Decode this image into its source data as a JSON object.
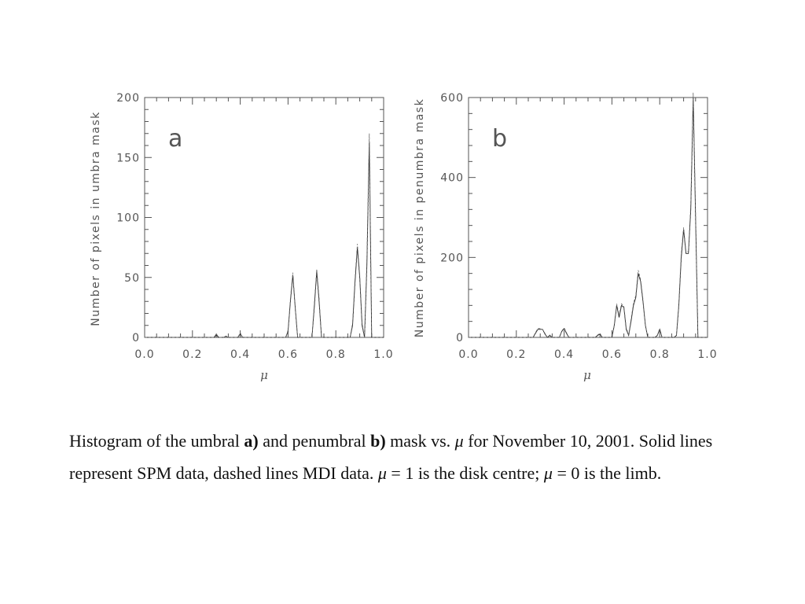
{
  "chart_data": [
    {
      "type": "line",
      "panel_label": "a",
      "ylabel": "Number of pixels in umbra mask",
      "xlabel": "μ",
      "xlim": [
        0,
        1
      ],
      "ylim": [
        0,
        200
      ],
      "xticks": [
        "0.0",
        "0.2",
        "0.4",
        "0.6",
        "0.8",
        "1.0"
      ],
      "yticks": [
        "0",
        "50",
        "100",
        "150",
        "200"
      ],
      "grid": false,
      "series": [
        {
          "style": "solid",
          "x": [
            0.0,
            0.29,
            0.3,
            0.31,
            0.33,
            0.34,
            0.35,
            0.39,
            0.4,
            0.41,
            0.59,
            0.6,
            0.61,
            0.62,
            0.63,
            0.64,
            0.7,
            0.71,
            0.72,
            0.73,
            0.74,
            0.86,
            0.87,
            0.88,
            0.89,
            0.9,
            0.91,
            0.92,
            0.93,
            0.94,
            0.945,
            0.95,
            1.0
          ],
          "y": [
            0,
            0,
            2,
            0,
            0,
            1,
            0,
            0,
            3,
            0,
            0,
            5,
            30,
            52,
            25,
            0,
            0,
            25,
            55,
            30,
            0,
            0,
            10,
            45,
            75,
            50,
            10,
            0,
            60,
            163,
            80,
            0,
            0
          ]
        },
        {
          "style": "dashed",
          "x": [
            0.0,
            0.29,
            0.3,
            0.31,
            0.33,
            0.34,
            0.35,
            0.39,
            0.4,
            0.41,
            0.59,
            0.6,
            0.61,
            0.62,
            0.63,
            0.64,
            0.7,
            0.71,
            0.72,
            0.73,
            0.74,
            0.86,
            0.87,
            0.88,
            0.89,
            0.9,
            0.91,
            0.92,
            0.93,
            0.94,
            0.945,
            0.95,
            1.0
          ],
          "y": [
            0,
            0,
            3,
            0,
            0,
            1,
            0,
            0,
            4,
            0,
            0,
            6,
            32,
            54,
            26,
            0,
            0,
            28,
            57,
            33,
            0,
            0,
            12,
            48,
            78,
            52,
            12,
            0,
            65,
            170,
            85,
            0,
            0
          ]
        }
      ]
    },
    {
      "type": "line",
      "panel_label": "b",
      "ylabel": "Number of pixels in penumbra mask",
      "xlabel": "μ",
      "xlim": [
        0,
        1
      ],
      "ylim": [
        0,
        600
      ],
      "xticks": [
        "0.0",
        "0.2",
        "0.4",
        "0.6",
        "0.8",
        "1.0"
      ],
      "yticks": [
        "0",
        "200",
        "400",
        "600"
      ],
      "grid": false,
      "series": [
        {
          "style": "solid",
          "x": [
            0.0,
            0.27,
            0.28,
            0.29,
            0.3,
            0.31,
            0.32,
            0.33,
            0.34,
            0.35,
            0.36,
            0.38,
            0.39,
            0.4,
            0.41,
            0.42,
            0.53,
            0.54,
            0.55,
            0.56,
            0.6,
            0.61,
            0.62,
            0.63,
            0.64,
            0.65,
            0.66,
            0.67,
            0.68,
            0.69,
            0.7,
            0.71,
            0.72,
            0.73,
            0.74,
            0.75,
            0.78,
            0.79,
            0.8,
            0.81,
            0.86,
            0.87,
            0.88,
            0.89,
            0.9,
            0.91,
            0.92,
            0.93,
            0.94,
            0.95,
            0.96,
            1.0
          ],
          "y": [
            0,
            0,
            10,
            20,
            20,
            20,
            8,
            0,
            5,
            0,
            0,
            0,
            15,
            22,
            10,
            0,
            0,
            5,
            8,
            0,
            0,
            30,
            80,
            50,
            80,
            75,
            20,
            5,
            40,
            80,
            100,
            160,
            140,
            90,
            30,
            0,
            0,
            5,
            20,
            0,
            0,
            5,
            80,
            200,
            270,
            210,
            210,
            320,
            600,
            300,
            0,
            0
          ]
        },
        {
          "style": "dashed",
          "x": [
            0.0,
            0.27,
            0.28,
            0.29,
            0.3,
            0.31,
            0.32,
            0.33,
            0.34,
            0.35,
            0.36,
            0.38,
            0.39,
            0.4,
            0.41,
            0.42,
            0.53,
            0.54,
            0.55,
            0.56,
            0.6,
            0.61,
            0.62,
            0.63,
            0.64,
            0.65,
            0.66,
            0.67,
            0.68,
            0.69,
            0.7,
            0.71,
            0.72,
            0.73,
            0.74,
            0.75,
            0.78,
            0.79,
            0.8,
            0.81,
            0.86,
            0.87,
            0.88,
            0.89,
            0.9,
            0.91,
            0.92,
            0.93,
            0.94,
            0.95,
            0.96,
            1.0
          ],
          "y": [
            0,
            0,
            12,
            22,
            22,
            20,
            10,
            0,
            6,
            0,
            0,
            0,
            16,
            24,
            12,
            0,
            0,
            6,
            10,
            0,
            0,
            32,
            84,
            55,
            84,
            78,
            24,
            6,
            45,
            85,
            105,
            168,
            145,
            95,
            32,
            0,
            0,
            6,
            22,
            0,
            0,
            6,
            85,
            210,
            275,
            215,
            215,
            330,
            612,
            310,
            0,
            0
          ]
        }
      ]
    }
  ],
  "caption": {
    "part1": "Histogram of the umbral ",
    "bold_a": "a)",
    "part2": " and penumbral ",
    "bold_b": "b)",
    "part3": " mask vs. ",
    "mu1": "μ",
    "part4": "  for November 10, 2001. Solid lines represent SPM data, dashed lines MDI data. ",
    "mu2": "μ",
    "part5": " = 1 is the disk centre; ",
    "mu3": "μ",
    "part6": " = 0 is the limb."
  }
}
